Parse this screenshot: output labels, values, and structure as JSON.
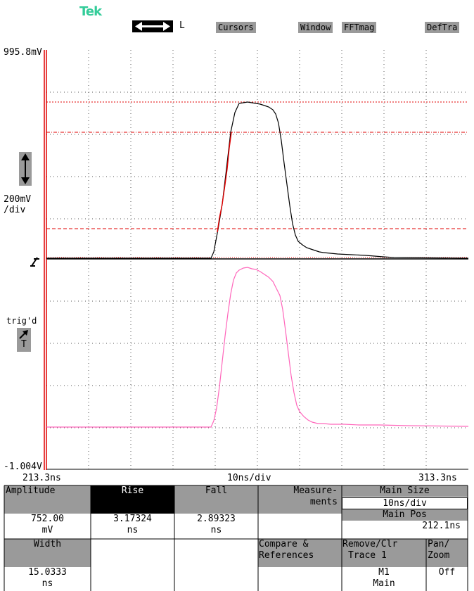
{
  "header": {
    "logo": "Tek",
    "ref_label": "L",
    "menu": [
      "Cursors",
      "Window",
      "FFTmag",
      "DefTra"
    ]
  },
  "scope": {
    "top_voltage": "995.8mV",
    "bottom_voltage": "-1.004V",
    "volts_per_div": "200mV",
    "per_div_suffix": "/div",
    "trig_label": "trig'd",
    "trig_symbol": "T",
    "time_start": "213.3ns",
    "time_end": "313.3ns",
    "time_per_div": "10ns/div"
  },
  "measurements": {
    "amplitude": {
      "label": "Amplitude",
      "value": "752.00",
      "unit": "mV"
    },
    "rise": {
      "label": "Rise",
      "value": "3.17324",
      "unit": "ns"
    },
    "fall": {
      "label": "Fall",
      "value": "2.89323",
      "unit": "ns"
    },
    "measurements_btn": {
      "line1": "Measure-",
      "line2": "ments"
    },
    "width": {
      "label": "Width",
      "value": "15.0333",
      "unit": "ns"
    },
    "compare": {
      "line1": "Compare &",
      "line2": "References"
    }
  },
  "side_menu": {
    "main_size_label": "Main Size",
    "main_size_value": "10ns/div",
    "main_pos_label": "Main Pos",
    "main_pos_value": "212.1ns",
    "remove_line1": "Remove/Clr",
    "remove_line2": "Trace 1",
    "remove_line3": "M1",
    "remove_line4": "Main",
    "panzoom_line1": "Pan/",
    "panzoom_line2": "Zoom",
    "panzoom_value": "Off"
  },
  "colors": {
    "logo": "#33cc99",
    "cursor_red": "#e00000",
    "ch1_trace": "#000000",
    "ch2_trace": "#ff66bb",
    "menu_gray": "#9a9a9a"
  }
}
